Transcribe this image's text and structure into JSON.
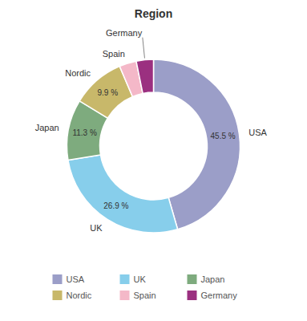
{
  "chart_data": {
    "type": "pie",
    "title": "Region",
    "categories": [
      "USA",
      "UK",
      "Japan",
      "Nordic",
      "Spain",
      "Germany"
    ],
    "values": [
      45.5,
      26.9,
      11.3,
      9.9,
      3.2,
      3.2
    ],
    "value_labels": [
      "45.5 %",
      "26.9 %",
      "11.3 %",
      "9.9 %",
      null,
      null
    ],
    "colors": [
      "#9B9EC8",
      "#87CEEB",
      "#7EAB7E",
      "#C8B86A",
      "#F4B8C8",
      "#9B3080"
    ],
    "data_labels": true,
    "legend": "bottom"
  }
}
